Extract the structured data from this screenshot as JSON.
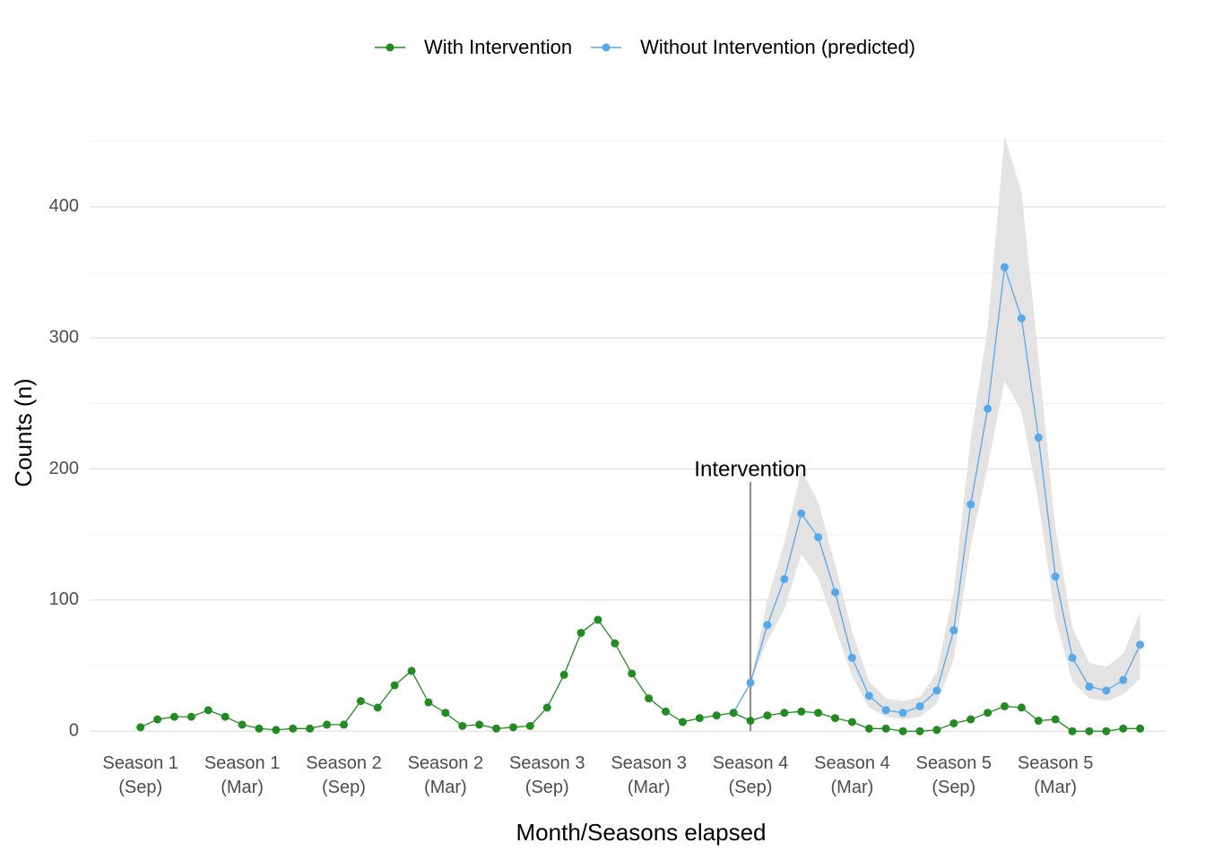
{
  "chart_data": {
    "type": "line",
    "legend": "top",
    "x_label": "Month/Seasons elapsed",
    "y_label": "Counts (n)",
    "x": [
      0,
      1,
      2,
      3,
      4,
      5,
      6,
      7,
      8,
      9,
      10,
      11,
      12,
      13,
      14,
      15,
      16,
      17,
      18,
      19,
      20,
      21,
      22,
      23,
      24,
      25,
      26,
      27,
      28,
      29,
      30,
      31,
      32,
      33,
      34,
      35,
      36,
      37,
      38,
      39,
      40,
      41,
      42,
      43,
      44,
      45,
      46,
      47,
      48,
      49,
      50,
      51,
      52,
      53,
      54,
      55,
      56,
      57,
      58,
      59
    ],
    "series": [
      {
        "name": "With Intervention",
        "color": "#228b22",
        "values": [
          3,
          9,
          11,
          11,
          16,
          11,
          5,
          2,
          1,
          2,
          2,
          5,
          5,
          23,
          18,
          35,
          46,
          22,
          14,
          4,
          5,
          2,
          3,
          4,
          18,
          43,
          75,
          85,
          67,
          44,
          25,
          15,
          7,
          10,
          12,
          14,
          8,
          12,
          14,
          15,
          14,
          10,
          7,
          2,
          2,
          0,
          0,
          1,
          6,
          9,
          14,
          19,
          18,
          8,
          9,
          0,
          0,
          0,
          2,
          2
        ]
      },
      {
        "name": "Without Intervention (predicted)",
        "color": "#56a8e8",
        "band_color": "#e3e3e3",
        "values": [
          null,
          null,
          null,
          null,
          null,
          null,
          null,
          null,
          null,
          null,
          null,
          null,
          null,
          null,
          null,
          null,
          null,
          null,
          null,
          null,
          null,
          null,
          null,
          null,
          null,
          null,
          null,
          null,
          null,
          null,
          null,
          null,
          null,
          null,
          null,
          14,
          37,
          81,
          116,
          166,
          148,
          106,
          56,
          27,
          16,
          14,
          19,
          31,
          77,
          173,
          246,
          354,
          315,
          224,
          118,
          56,
          34,
          31,
          39,
          66
        ],
        "upper": [
          null,
          null,
          null,
          null,
          null,
          null,
          null,
          null,
          null,
          null,
          null,
          null,
          null,
          null,
          null,
          null,
          null,
          null,
          null,
          null,
          null,
          null,
          null,
          null,
          null,
          null,
          null,
          null,
          null,
          null,
          null,
          null,
          null,
          null,
          null,
          null,
          37,
          100,
          144,
          199,
          175,
          127,
          76,
          38,
          25,
          23,
          26,
          45,
          107,
          223,
          308,
          454,
          411,
          285,
          155,
          79,
          52,
          49,
          59,
          91
        ],
        "lower": [
          null,
          null,
          null,
          null,
          null,
          null,
          null,
          null,
          null,
          null,
          null,
          null,
          null,
          null,
          null,
          null,
          null,
          null,
          null,
          null,
          null,
          null,
          null,
          null,
          null,
          null,
          null,
          null,
          null,
          null,
          null,
          null,
          null,
          null,
          null,
          null,
          37,
          69,
          93,
          135,
          117,
          79,
          42,
          18,
          11,
          9,
          11,
          21,
          55,
          141,
          202,
          267,
          244,
          175,
          86,
          38,
          25,
          23,
          28,
          40
        ]
      }
    ],
    "annotation": {
      "text": "Intervention",
      "x": 36
    },
    "xlim": [
      -3,
      60.5
    ],
    "xticks": [
      {
        "value": 0,
        "label": "Season 1\n(Sep)"
      },
      {
        "value": 6,
        "label": "Season 1\n(Mar)"
      },
      {
        "value": 12,
        "label": "Season 2\n(Sep)"
      },
      {
        "value": 18,
        "label": "Season 2\n(Mar)"
      },
      {
        "value": 24,
        "label": "Season 3\n(Sep)"
      },
      {
        "value": 30,
        "label": "Season 3\n(Mar)"
      },
      {
        "value": 36,
        "label": "Season 4\n(Sep)"
      },
      {
        "value": 42,
        "label": "Season 4\n(Mar)"
      },
      {
        "value": 48,
        "label": "Season 5\n(Sep)"
      },
      {
        "value": 54,
        "label": "Season 5\n(Mar)"
      }
    ],
    "ylim": [
      -6,
      458
    ],
    "yticks": [
      0,
      100,
      200,
      300,
      400
    ],
    "y_minor_ticks": [
      50,
      150,
      250,
      350,
      450
    ],
    "grid": true
  }
}
